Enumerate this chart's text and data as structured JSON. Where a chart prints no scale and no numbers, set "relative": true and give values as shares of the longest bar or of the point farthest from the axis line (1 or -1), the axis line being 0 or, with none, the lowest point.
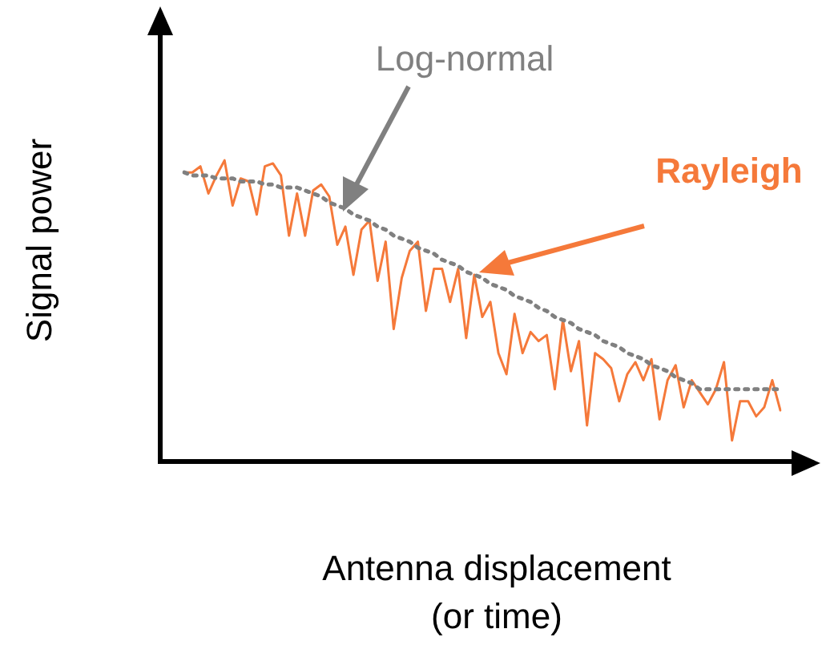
{
  "chart_data": {
    "type": "line",
    "relative": true,
    "xlabel": "Antenna displacement\n(or time)",
    "ylabel": "Signal power",
    "line_style": "solid",
    "marker": "none",
    "legend": false,
    "categories": [
      null,
      null,
      null,
      null,
      null,
      null,
      null,
      null,
      null,
      null,
      null,
      null,
      null,
      null,
      null,
      null,
      null,
      null,
      null,
      null,
      null,
      null,
      null,
      null,
      null,
      null,
      null,
      null,
      null,
      null,
      null,
      null,
      null,
      null,
      null,
      null,
      null,
      null,
      null,
      null,
      null,
      null,
      null,
      null,
      null,
      null,
      null,
      null,
      null,
      null,
      null,
      null,
      null,
      null,
      null,
      null,
      null,
      null,
      null,
      null,
      null,
      null,
      null,
      null,
      null,
      null,
      null,
      null,
      null,
      null,
      null,
      null,
      null,
      null,
      null
    ],
    "series": [
      {
        "name": "Rayleigh",
        "color": "#f5793a",
        "values": [
          0.96,
          0.96,
          0.98,
          0.89,
          0.95,
          1,
          0.85,
          0.94,
          0.93,
          0.82,
          0.98,
          0.99,
          0.95,
          0.75,
          0.89,
          0.75,
          0.9,
          0.92,
          0.88,
          0.72,
          0.78,
          0.62,
          0.77,
          0.8,
          0.6,
          0.73,
          0.44,
          0.61,
          0.7,
          0.73,
          0.5,
          0.64,
          0.64,
          0.53,
          0.64,
          0.41,
          0.62,
          0.48,
          0.53,
          0.36,
          0.29,
          0.49,
          0.36,
          0.43,
          0.4,
          0.42,
          0.24,
          0.47,
          0.3,
          0.4,
          0.12,
          0.36,
          0.34,
          0.31,
          0.2,
          0.29,
          0.33,
          0.27,
          0.34,
          0.14,
          0.27,
          0.32,
          0.18,
          0.27,
          0.23,
          0.19,
          0.24,
          0.33,
          0.07,
          0.2,
          0.2,
          0.15,
          0.18,
          0.27,
          0.17
        ]
      },
      {
        "name": "Log-normal",
        "color": "#808080",
        "line_style": "dotted",
        "values": [
          0.96,
          0.95,
          0.95,
          0.95,
          0.94,
          0.94,
          0.94,
          0.93,
          0.93,
          0.93,
          0.92,
          0.92,
          0.91,
          0.91,
          0.91,
          0.9,
          0.89,
          0.88,
          0.86,
          0.85,
          0.84,
          0.82,
          0.81,
          0.8,
          0.78,
          0.77,
          0.75,
          0.74,
          0.73,
          0.71,
          0.7,
          0.69,
          0.67,
          0.66,
          0.65,
          0.63,
          0.62,
          0.61,
          0.59,
          0.58,
          0.57,
          0.55,
          0.54,
          0.53,
          0.51,
          0.5,
          0.48,
          0.47,
          0.46,
          0.44,
          0.43,
          0.42,
          0.4,
          0.39,
          0.38,
          0.36,
          0.35,
          0.34,
          0.32,
          0.31,
          0.3,
          0.28,
          0.27,
          0.26,
          0.24,
          0.24,
          0.24,
          0.24,
          0.24,
          0.24,
          0.24,
          0.24,
          0.24,
          0.24,
          0.24
        ]
      }
    ]
  }
}
